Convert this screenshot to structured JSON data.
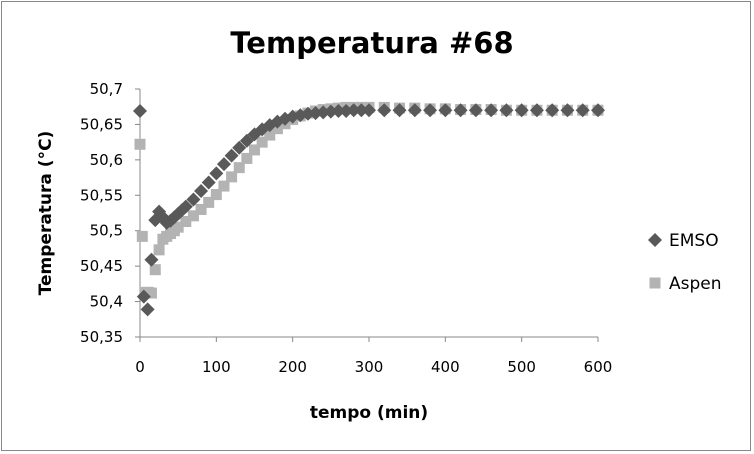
{
  "chart_data": {
    "type": "scatter",
    "title": "Temperatura #68",
    "xlabel": "tempo (min)",
    "ylabel": "Temperatura (°C)",
    "xlim": [
      0,
      600
    ],
    "ylim": [
      50.35,
      50.7
    ],
    "x_ticks": [
      "0",
      "100",
      "200",
      "300",
      "400",
      "500",
      "600"
    ],
    "y_ticks": [
      "50,35",
      "50,4",
      "50,45",
      "50,5",
      "50,55",
      "50,6",
      "50,65",
      "50,7"
    ],
    "grid": false,
    "legend_position": "right",
    "series": [
      {
        "name": "EMSO",
        "color": "#595959",
        "marker": "diamond",
        "x": [
          0,
          5,
          10,
          15,
          20,
          25,
          30,
          35,
          40,
          45,
          50,
          55,
          60,
          70,
          80,
          90,
          100,
          110,
          120,
          130,
          140,
          150,
          160,
          170,
          180,
          190,
          200,
          210,
          220,
          230,
          240,
          250,
          260,
          270,
          280,
          290,
          300,
          320,
          340,
          360,
          380,
          400,
          420,
          440,
          460,
          480,
          500,
          520,
          540,
          560,
          580,
          600
        ],
        "y": [
          50.669,
          50.407,
          50.389,
          50.459,
          50.515,
          50.527,
          50.519,
          50.511,
          50.514,
          50.519,
          50.524,
          50.529,
          50.534,
          50.544,
          50.556,
          50.568,
          50.581,
          50.594,
          50.606,
          50.617,
          50.627,
          50.636,
          50.643,
          50.649,
          50.654,
          50.658,
          50.661,
          50.663,
          50.665,
          50.666,
          50.667,
          50.668,
          50.669,
          50.669,
          50.67,
          50.67,
          50.67,
          50.67,
          50.67,
          50.67,
          50.67,
          50.67,
          50.67,
          50.67,
          50.67,
          50.67,
          50.67,
          50.67,
          50.67,
          50.67,
          50.67,
          50.67
        ]
      },
      {
        "name": "Aspen",
        "color": "#b3b3b3",
        "marker": "square",
        "x": [
          0,
          3,
          7,
          11,
          15,
          20,
          25,
          30,
          35,
          40,
          45,
          50,
          60,
          70,
          80,
          90,
          100,
          110,
          120,
          130,
          140,
          150,
          160,
          170,
          180,
          190,
          200,
          210,
          220,
          230,
          240,
          250,
          260,
          270,
          280,
          290,
          300,
          320,
          340,
          360,
          380,
          400,
          420,
          440,
          460,
          480,
          500,
          520,
          540,
          560,
          580,
          600
        ],
        "y": [
          50.622,
          50.492,
          50.413,
          50.413,
          50.412,
          50.445,
          50.473,
          50.488,
          50.492,
          50.496,
          50.5,
          50.505,
          50.513,
          50.521,
          50.53,
          50.54,
          50.551,
          50.563,
          50.576,
          50.589,
          50.602,
          50.614,
          50.625,
          50.635,
          50.644,
          50.651,
          50.657,
          50.662,
          50.666,
          50.669,
          50.671,
          50.672,
          50.673,
          50.674,
          50.674,
          50.674,
          50.674,
          50.674,
          50.673,
          50.673,
          50.672,
          50.672,
          50.671,
          50.671,
          50.671,
          50.67,
          50.67,
          50.67,
          50.67,
          50.67,
          50.67,
          50.67
        ]
      }
    ]
  }
}
